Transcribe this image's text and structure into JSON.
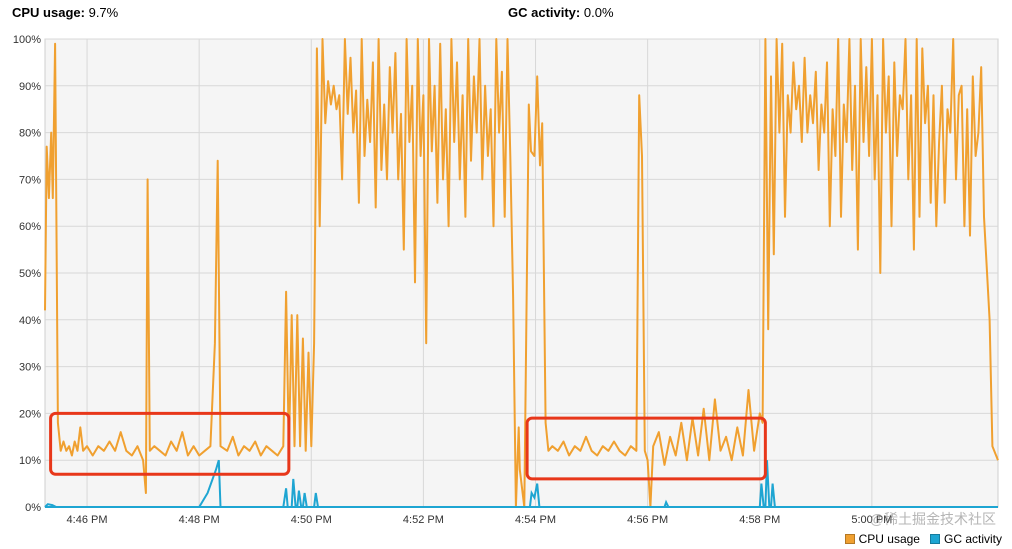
{
  "header": {
    "cpu_label": "CPU usage:",
    "cpu_value": "9.7%",
    "gc_label": "GC activity:",
    "gc_value": "0.0%"
  },
  "watermark": "@稀土掘金技术社区",
  "colors": {
    "cpu": "#f0a030",
    "gc": "#1ea5d2",
    "highlight": "#e8371a",
    "grid": "#d8d8d8",
    "plot_bg": "#f5f5f5"
  },
  "chart_data": {
    "type": "line",
    "ylim": [
      0,
      100
    ],
    "y_ticks": [
      "0%",
      "10%",
      "20%",
      "30%",
      "40%",
      "50%",
      "60%",
      "70%",
      "80%",
      "90%",
      "100%"
    ],
    "x_range_minutes": [
      -0.75,
      16.25
    ],
    "x_ticks": [
      {
        "label": "4:46 PM",
        "t": 0
      },
      {
        "label": "4:48 PM",
        "t": 2
      },
      {
        "label": "4:50 PM",
        "t": 4
      },
      {
        "label": "4:52 PM",
        "t": 6
      },
      {
        "label": "4:54 PM",
        "t": 8
      },
      {
        "label": "4:56 PM",
        "t": 10
      },
      {
        "label": "4:58 PM",
        "t": 12
      },
      {
        "label": "5:00 PM",
        "t": 14
      }
    ],
    "series": [
      {
        "name": "CPU usage",
        "color": "#f0a030",
        "points": [
          [
            -0.75,
            42
          ],
          [
            -0.72,
            77
          ],
          [
            -0.68,
            66
          ],
          [
            -0.64,
            80
          ],
          [
            -0.61,
            66
          ],
          [
            -0.57,
            99
          ],
          [
            -0.52,
            18
          ],
          [
            -0.47,
            12
          ],
          [
            -0.42,
            14
          ],
          [
            -0.37,
            12
          ],
          [
            -0.32,
            13
          ],
          [
            -0.27,
            11
          ],
          [
            -0.22,
            14
          ],
          [
            -0.17,
            12
          ],
          [
            -0.12,
            17
          ],
          [
            -0.07,
            12
          ],
          [
            0,
            13
          ],
          [
            0.1,
            11
          ],
          [
            0.2,
            13
          ],
          [
            0.3,
            12
          ],
          [
            0.4,
            14
          ],
          [
            0.5,
            12
          ],
          [
            0.6,
            16
          ],
          [
            0.7,
            12
          ],
          [
            0.8,
            11
          ],
          [
            0.9,
            13
          ],
          [
            1.0,
            10
          ],
          [
            1.05,
            3
          ],
          [
            1.08,
            70
          ],
          [
            1.12,
            12
          ],
          [
            1.2,
            13
          ],
          [
            1.3,
            12
          ],
          [
            1.4,
            11
          ],
          [
            1.5,
            14
          ],
          [
            1.6,
            12
          ],
          [
            1.7,
            16
          ],
          [
            1.8,
            11
          ],
          [
            1.9,
            13
          ],
          [
            2.0,
            11
          ],
          [
            2.1,
            12
          ],
          [
            2.2,
            13
          ],
          [
            2.28,
            35
          ],
          [
            2.33,
            74
          ],
          [
            2.38,
            13
          ],
          [
            2.5,
            12
          ],
          [
            2.6,
            15
          ],
          [
            2.7,
            11
          ],
          [
            2.8,
            13
          ],
          [
            2.9,
            12
          ],
          [
            3.0,
            14
          ],
          [
            3.1,
            11
          ],
          [
            3.2,
            13
          ],
          [
            3.3,
            12
          ],
          [
            3.4,
            11
          ],
          [
            3.5,
            13
          ],
          [
            3.55,
            46
          ],
          [
            3.6,
            12
          ],
          [
            3.65,
            41
          ],
          [
            3.7,
            13
          ],
          [
            3.75,
            41
          ],
          [
            3.8,
            13
          ],
          [
            3.85,
            36
          ],
          [
            3.9,
            12
          ],
          [
            3.95,
            33
          ],
          [
            4.0,
            13
          ],
          [
            4.05,
            35
          ],
          [
            4.1,
            98
          ],
          [
            4.15,
            60
          ],
          [
            4.2,
            100
          ],
          [
            4.25,
            82
          ],
          [
            4.3,
            91
          ],
          [
            4.35,
            86
          ],
          [
            4.4,
            90
          ],
          [
            4.45,
            85
          ],
          [
            4.5,
            88
          ],
          [
            4.55,
            70
          ],
          [
            4.6,
            100
          ],
          [
            4.65,
            84
          ],
          [
            4.7,
            96
          ],
          [
            4.75,
            80
          ],
          [
            4.8,
            89
          ],
          [
            4.85,
            65
          ],
          [
            4.9,
            100
          ],
          [
            4.95,
            75
          ],
          [
            5.0,
            87
          ],
          [
            5.05,
            78
          ],
          [
            5.1,
            95
          ],
          [
            5.15,
            64
          ],
          [
            5.2,
            100
          ],
          [
            5.25,
            72
          ],
          [
            5.3,
            86
          ],
          [
            5.35,
            70
          ],
          [
            5.4,
            94
          ],
          [
            5.45,
            80
          ],
          [
            5.5,
            97
          ],
          [
            5.55,
            70
          ],
          [
            5.6,
            84
          ],
          [
            5.65,
            55
          ],
          [
            5.7,
            100
          ],
          [
            5.75,
            78
          ],
          [
            5.8,
            90
          ],
          [
            5.85,
            48
          ],
          [
            5.9,
            100
          ],
          [
            5.95,
            75
          ],
          [
            6.0,
            88
          ],
          [
            6.05,
            35
          ],
          [
            6.1,
            100
          ],
          [
            6.15,
            76
          ],
          [
            6.2,
            90
          ],
          [
            6.25,
            65
          ],
          [
            6.3,
            99
          ],
          [
            6.35,
            70
          ],
          [
            6.4,
            85
          ],
          [
            6.45,
            60
          ],
          [
            6.5,
            100
          ],
          [
            6.55,
            78
          ],
          [
            6.6,
            95
          ],
          [
            6.65,
            70
          ],
          [
            6.7,
            88
          ],
          [
            6.75,
            62
          ],
          [
            6.8,
            100
          ],
          [
            6.85,
            74
          ],
          [
            6.9,
            92
          ],
          [
            6.95,
            80
          ],
          [
            7.0,
            100
          ],
          [
            7.05,
            70
          ],
          [
            7.1,
            90
          ],
          [
            7.15,
            75
          ],
          [
            7.2,
            85
          ],
          [
            7.25,
            60
          ],
          [
            7.3,
            100
          ],
          [
            7.35,
            80
          ],
          [
            7.4,
            93
          ],
          [
            7.45,
            62
          ],
          [
            7.5,
            100
          ],
          [
            7.55,
            75
          ],
          [
            7.6,
            45
          ],
          [
            7.65,
            0
          ],
          [
            7.7,
            17
          ],
          [
            7.72,
            8
          ],
          [
            7.8,
            0
          ],
          [
            7.88,
            86
          ],
          [
            7.92,
            76
          ],
          [
            7.98,
            75
          ],
          [
            8.03,
            92
          ],
          [
            8.08,
            73
          ],
          [
            8.12,
            82
          ],
          [
            8.18,
            18
          ],
          [
            8.23,
            12
          ],
          [
            8.3,
            13
          ],
          [
            8.4,
            12
          ],
          [
            8.5,
            14
          ],
          [
            8.6,
            11
          ],
          [
            8.7,
            13
          ],
          [
            8.8,
            12
          ],
          [
            8.9,
            15
          ],
          [
            9.0,
            12
          ],
          [
            9.1,
            11
          ],
          [
            9.2,
            13
          ],
          [
            9.3,
            12
          ],
          [
            9.4,
            14
          ],
          [
            9.5,
            12
          ],
          [
            9.6,
            11
          ],
          [
            9.7,
            13
          ],
          [
            9.8,
            12
          ],
          [
            9.85,
            88
          ],
          [
            9.9,
            75
          ],
          [
            9.95,
            12
          ],
          [
            10.0,
            10
          ],
          [
            10.05,
            0
          ],
          [
            10.1,
            13
          ],
          [
            10.2,
            16
          ],
          [
            10.3,
            9
          ],
          [
            10.4,
            15
          ],
          [
            10.5,
            11
          ],
          [
            10.6,
            18
          ],
          [
            10.7,
            10
          ],
          [
            10.8,
            19
          ],
          [
            10.9,
            11
          ],
          [
            11.0,
            21
          ],
          [
            11.1,
            10
          ],
          [
            11.2,
            23
          ],
          [
            11.3,
            12
          ],
          [
            11.4,
            15
          ],
          [
            11.5,
            10
          ],
          [
            11.6,
            17
          ],
          [
            11.7,
            11
          ],
          [
            11.8,
            25
          ],
          [
            11.9,
            12
          ],
          [
            12.0,
            20
          ],
          [
            12.05,
            18
          ],
          [
            12.1,
            100
          ],
          [
            12.15,
            38
          ],
          [
            12.2,
            92
          ],
          [
            12.25,
            54
          ],
          [
            12.3,
            100
          ],
          [
            12.35,
            80
          ],
          [
            12.4,
            99
          ],
          [
            12.45,
            62
          ],
          [
            12.5,
            88
          ],
          [
            12.55,
            80
          ],
          [
            12.6,
            95
          ],
          [
            12.65,
            85
          ],
          [
            12.7,
            90
          ],
          [
            12.75,
            78
          ],
          [
            12.8,
            96
          ],
          [
            12.85,
            80
          ],
          [
            12.9,
            88
          ],
          [
            12.95,
            82
          ],
          [
            13.0,
            93
          ],
          [
            13.05,
            72
          ],
          [
            13.1,
            86
          ],
          [
            13.15,
            80
          ],
          [
            13.2,
            95
          ],
          [
            13.25,
            60
          ],
          [
            13.3,
            85
          ],
          [
            13.35,
            75
          ],
          [
            13.4,
            100
          ],
          [
            13.45,
            62
          ],
          [
            13.5,
            86
          ],
          [
            13.55,
            78
          ],
          [
            13.6,
            100
          ],
          [
            13.65,
            72
          ],
          [
            13.7,
            90
          ],
          [
            13.75,
            55
          ],
          [
            13.8,
            100
          ],
          [
            13.85,
            78
          ],
          [
            13.9,
            94
          ],
          [
            13.95,
            75
          ],
          [
            14.0,
            100
          ],
          [
            14.05,
            70
          ],
          [
            14.1,
            88
          ],
          [
            14.15,
            50
          ],
          [
            14.2,
            100
          ],
          [
            14.25,
            80
          ],
          [
            14.3,
            92
          ],
          [
            14.35,
            60
          ],
          [
            14.4,
            95
          ],
          [
            14.45,
            75
          ],
          [
            14.5,
            88
          ],
          [
            14.55,
            85
          ],
          [
            14.6,
            100
          ],
          [
            14.65,
            70
          ],
          [
            14.7,
            88
          ],
          [
            14.75,
            55
          ],
          [
            14.8,
            100
          ],
          [
            14.85,
            62
          ],
          [
            14.9,
            98
          ],
          [
            14.95,
            82
          ],
          [
            15.0,
            90
          ],
          [
            15.05,
            65
          ],
          [
            15.1,
            88
          ],
          [
            15.15,
            60
          ],
          [
            15.2,
            78
          ],
          [
            15.25,
            90
          ],
          [
            15.3,
            65
          ],
          [
            15.35,
            85
          ],
          [
            15.4,
            80
          ],
          [
            15.45,
            100
          ],
          [
            15.5,
            70
          ],
          [
            15.55,
            88
          ],
          [
            15.6,
            90
          ],
          [
            15.65,
            60
          ],
          [
            15.7,
            85
          ],
          [
            15.75,
            58
          ],
          [
            15.8,
            92
          ],
          [
            15.85,
            75
          ],
          [
            15.9,
            80
          ],
          [
            15.95,
            94
          ],
          [
            16.0,
            62
          ],
          [
            16.1,
            40
          ],
          [
            16.15,
            13
          ],
          [
            16.25,
            10
          ]
        ]
      },
      {
        "name": "GC activity",
        "color": "#1ea5d2",
        "points": [
          [
            -0.75,
            0
          ],
          [
            -0.7,
            0.6
          ],
          [
            -0.62,
            0.4
          ],
          [
            -0.55,
            0
          ],
          [
            2.0,
            0
          ],
          [
            2.15,
            3
          ],
          [
            2.3,
            8
          ],
          [
            2.35,
            10
          ],
          [
            2.38,
            0
          ],
          [
            3.5,
            0
          ],
          [
            3.55,
            4
          ],
          [
            3.58,
            0
          ],
          [
            3.65,
            0
          ],
          [
            3.68,
            6
          ],
          [
            3.72,
            0
          ],
          [
            3.75,
            0
          ],
          [
            3.78,
            3.5
          ],
          [
            3.82,
            0
          ],
          [
            3.85,
            0
          ],
          [
            3.88,
            3
          ],
          [
            3.92,
            0
          ],
          [
            4.05,
            0
          ],
          [
            4.08,
            3
          ],
          [
            4.12,
            0
          ],
          [
            7.9,
            0
          ],
          [
            7.93,
            3
          ],
          [
            7.98,
            2
          ],
          [
            8.03,
            5
          ],
          [
            8.07,
            0
          ],
          [
            10.3,
            0
          ],
          [
            10.33,
            1
          ],
          [
            10.37,
            0
          ],
          [
            12.0,
            0
          ],
          [
            12.03,
            5
          ],
          [
            12.07,
            0
          ],
          [
            12.1,
            0
          ],
          [
            12.13,
            10
          ],
          [
            12.17,
            0
          ],
          [
            12.2,
            0
          ],
          [
            12.23,
            5
          ],
          [
            12.27,
            0
          ],
          [
            16.25,
            0
          ]
        ]
      }
    ],
    "highlight_boxes": [
      {
        "t_start": -0.65,
        "t_end": 3.6,
        "y_low": 7,
        "y_high": 20
      },
      {
        "t_start": 7.85,
        "t_end": 12.1,
        "y_low": 6,
        "y_high": 19
      }
    ]
  }
}
